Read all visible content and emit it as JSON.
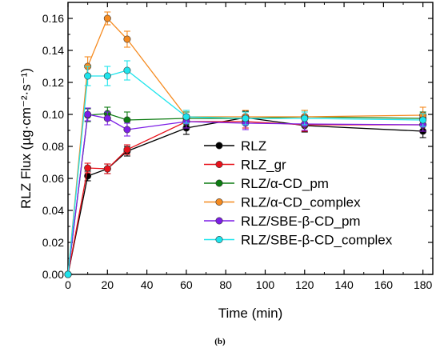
{
  "caption": "(b)",
  "chart_data": {
    "type": "line",
    "xlabel": "Time (min)",
    "ylabel": "RLZ Flux (µg·cm⁻²·s⁻¹)",
    "xlim": [
      0,
      185
    ],
    "ylim": [
      0,
      0.17
    ],
    "xticks": [
      0,
      20,
      40,
      60,
      80,
      100,
      120,
      140,
      160,
      180
    ],
    "yticks": [
      0.0,
      0.02,
      0.04,
      0.06,
      0.08,
      0.1,
      0.12,
      0.14,
      0.16
    ],
    "ytick_labels": [
      "0.00",
      "0.02",
      "0.04",
      "0.06",
      "0.08",
      "0.10",
      "0.12",
      "0.14",
      "0.16"
    ],
    "grid": false,
    "legend_position": "center-right",
    "x": [
      0,
      10,
      20,
      30,
      60,
      90,
      120,
      180
    ],
    "series": [
      {
        "name": "RLZ",
        "color": "#000000",
        "values": [
          0,
          0.0615,
          0.066,
          0.077,
          0.0915,
          0.098,
          0.093,
          0.0895
        ],
        "errors": [
          0,
          0.003,
          0.003,
          0.003,
          0.004,
          0.004,
          0.004,
          0.004
        ]
      },
      {
        "name": "RLZ_gr",
        "color": "#e8121b",
        "values": [
          0,
          0.0665,
          0.066,
          0.078,
          0.0955,
          0.0955,
          0.0935,
          0.0935
        ],
        "errors": [
          0,
          0.003,
          0.003,
          0.003,
          0.004,
          0.004,
          0.004,
          0.004
        ]
      },
      {
        "name": "RLZ/α-CD_pm",
        "color": "#0d7c12",
        "values": [
          0,
          0.0995,
          0.1005,
          0.0965,
          0.0975,
          0.0975,
          0.0985,
          0.0975
        ],
        "errors": [
          0,
          0.004,
          0.004,
          0.005,
          0.004,
          0.004,
          0.004,
          0.004
        ]
      },
      {
        "name": "RLZ/α-CD_complex",
        "color": "#f58a1f",
        "values": [
          0,
          0.13,
          0.16,
          0.147,
          0.0985,
          0.0985,
          0.0985,
          0.0995
        ],
        "errors": [
          0,
          0.006,
          0.004,
          0.005,
          0.004,
          0.004,
          0.004,
          0.005
        ]
      },
      {
        "name": "RLZ/SBE-β-CD_pm",
        "color": "#7d1ee6",
        "values": [
          0,
          0.1,
          0.0975,
          0.0905,
          0.0955,
          0.0945,
          0.094,
          0.0935
        ],
        "errors": [
          0,
          0.004,
          0.004,
          0.004,
          0.004,
          0.004,
          0.004,
          0.004
        ]
      },
      {
        "name": "RLZ/SBE-β-CD_complex",
        "color": "#1ee4ec",
        "values": [
          0,
          0.124,
          0.124,
          0.1275,
          0.0985,
          0.0975,
          0.0975,
          0.0965
        ],
        "errors": [
          0,
          0.006,
          0.006,
          0.006,
          0.004,
          0.004,
          0.004,
          0.004
        ]
      }
    ]
  }
}
